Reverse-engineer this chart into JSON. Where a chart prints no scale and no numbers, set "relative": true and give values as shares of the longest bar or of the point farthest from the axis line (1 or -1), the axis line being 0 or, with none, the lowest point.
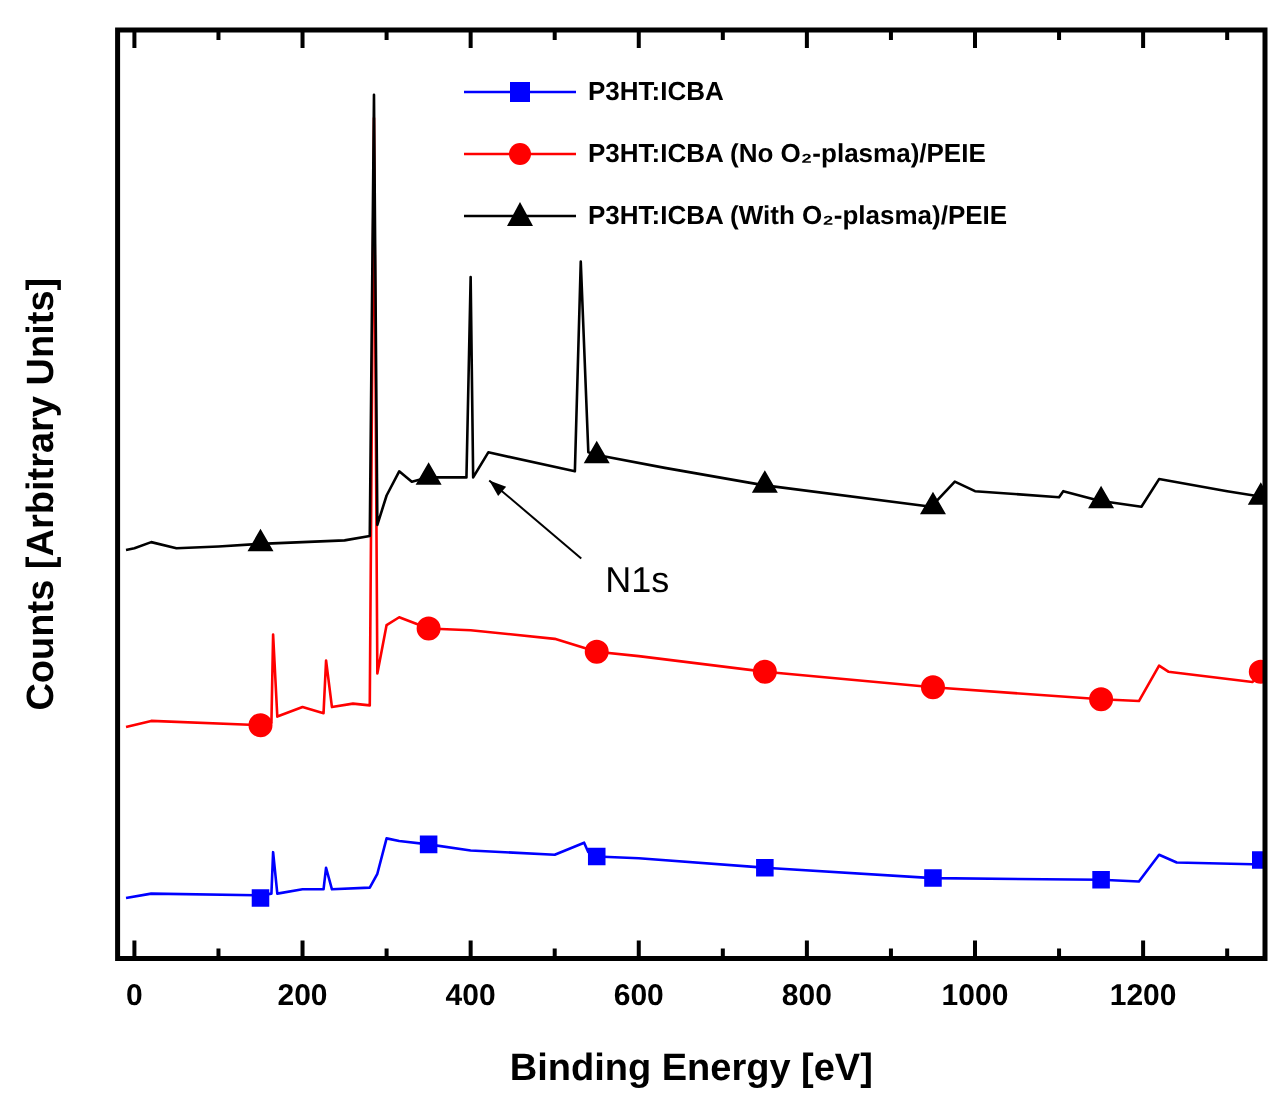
{
  "chart_data": {
    "type": "line",
    "relative": true,
    "xlabel": "Binding Energy [eV]",
    "ylabel": "Counts [Arbitrary Units]",
    "xlim": [
      -20,
      1345
    ],
    "xticks": [
      0,
      {
        "value": 100,
        "label": null
      },
      200,
      {
        "value": 300,
        "label": null
      },
      400,
      {
        "value": 500,
        "label": null
      },
      600,
      {
        "value": 700,
        "label": null
      },
      800,
      {
        "value": 900,
        "label": null
      },
      1000,
      {
        "value": 1100,
        "label": null
      },
      1200,
      {
        "value": 1300,
        "label": null
      }
    ],
    "tick_labels": "x",
    "grid": false,
    "legend": "top right",
    "line_style": "solid",
    "annotations": [
      "N1s"
    ],
    "series": [
      {
        "name": "P3HT:ICBA",
        "color": "#0000ff",
        "marker": "none",
        "x": [
          -10,
          20,
          150,
          163,
          165,
          170,
          200,
          225,
          228,
          235,
          280,
          285,
          289,
          300,
          315,
          350,
          400,
          500,
          535,
          540,
          550,
          600,
          750,
          950,
          1150,
          1195,
          1219,
          1240,
          1330,
          1345
        ],
        "values": [
          0.07,
          0.075,
          0.073,
          0.075,
          0.123,
          0.075,
          0.08,
          0.08,
          0.105,
          0.08,
          0.082,
          null,
          0.098,
          0.139,
          0.136,
          0.132,
          0.125,
          0.12,
          0.134,
          0.123,
          0.118,
          0.116,
          0.105,
          0.093,
          0.091,
          0.089,
          0.12,
          0.111,
          0.109,
          0.114
        ]
      },
      {
        "name": "P3HT:ICBA (No O₂-plasma)/PEIE",
        "color": "#ff0000",
        "marker": "none",
        "x": [
          -10,
          20,
          150,
          163,
          165,
          170,
          200,
          225,
          228,
          235,
          260,
          280,
          285,
          289,
          300,
          315,
          350,
          400,
          500,
          550,
          600,
          750,
          950,
          1150,
          1195,
          1219,
          1230,
          1330,
          1345
        ],
        "values": [
          0.268,
          0.275,
          0.27,
          0.273,
          0.375,
          0.28,
          0.291,
          0.284,
          0.345,
          0.291,
          0.295,
          0.293,
          0.973,
          0.33,
          0.386,
          0.395,
          0.382,
          0.38,
          0.37,
          0.355,
          0.35,
          0.332,
          0.314,
          0.3,
          0.298,
          0.339,
          0.332,
          0.32,
          0.332
        ]
      },
      {
        "name": "P3HT:ICBA (With O₂-plasma)/PEIE",
        "color": "#000000",
        "marker": "none",
        "x": [
          -10,
          0,
          20,
          50,
          100,
          150,
          200,
          250,
          280,
          285,
          289,
          300,
          315,
          330,
          350,
          395,
          400,
          403,
          421,
          524,
          531,
          540,
          555,
          631,
          748,
          948,
          976,
          1000,
          1100,
          1105,
          1148,
          1198,
          1219,
          1300,
          1345
        ],
        "values": [
          0.473,
          0.475,
          0.482,
          0.475,
          0.477,
          0.48,
          0.482,
          0.484,
          0.489,
          1.0,
          0.502,
          0.536,
          0.564,
          0.552,
          0.557,
          0.557,
          0.789,
          0.557,
          0.586,
          0.564,
          0.807,
          0.586,
          0.582,
          0.568,
          0.548,
          0.523,
          0.552,
          0.541,
          0.534,
          0.541,
          0.53,
          0.523,
          0.555,
          0.541,
          0.534
        ]
      },
      {
        "type": "scatter",
        "color": "#0000ff",
        "marker": "square",
        "x": [
          150,
          350,
          550,
          750,
          950,
          1150,
          1340
        ],
        "values": [
          0.07,
          0.132,
          0.118,
          0.105,
          0.093,
          0.091,
          0.114
        ]
      },
      {
        "type": "scatter",
        "color": "#ff0000",
        "marker": "circle",
        "x": [
          150,
          350,
          550,
          750,
          950,
          1150,
          1340
        ],
        "values": [
          0.27,
          0.382,
          0.355,
          0.332,
          0.314,
          0.3,
          0.332
        ]
      },
      {
        "type": "scatter",
        "color": "#000000",
        "marker": "triangle",
        "x": [
          150,
          350,
          550,
          750,
          950,
          1150,
          1340
        ],
        "values": [
          0.48,
          0.557,
          0.582,
          0.548,
          0.523,
          0.53,
          0.534
        ]
      }
    ]
  }
}
